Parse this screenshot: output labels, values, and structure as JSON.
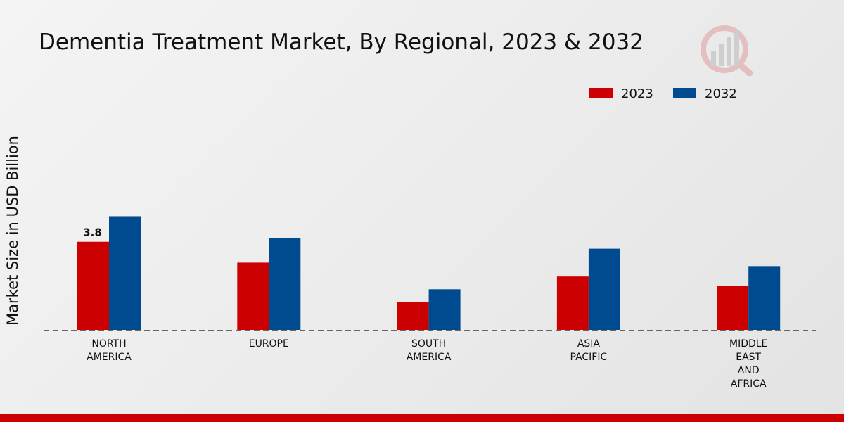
{
  "chart_data": {
    "type": "bar",
    "title": "Dementia Treatment Market, By Regional, 2023 & 2032",
    "xlabel": "",
    "ylabel": "Market Size in USD Billion",
    "categories": [
      [
        "NORTH",
        "AMERICA"
      ],
      [
        "EUROPE"
      ],
      [
        "SOUTH",
        "AMERICA"
      ],
      [
        "ASIA",
        "PACIFIC"
      ],
      [
        "MIDDLE",
        "EAST",
        "AND",
        "AFRICA"
      ]
    ],
    "series": [
      {
        "name": "2023",
        "color": "#cc0000",
        "values": [
          3.8,
          2.9,
          1.2,
          2.3,
          1.9
        ]
      },
      {
        "name": "2032",
        "color": "#004a8f",
        "values": [
          4.9,
          3.95,
          1.75,
          3.5,
          2.75
        ]
      }
    ],
    "data_labels": [
      {
        "series": 0,
        "index": 0,
        "text": "3.8"
      }
    ],
    "ylim": [
      0,
      9.1
    ],
    "legend_position": "top-right",
    "grid": false
  }
}
